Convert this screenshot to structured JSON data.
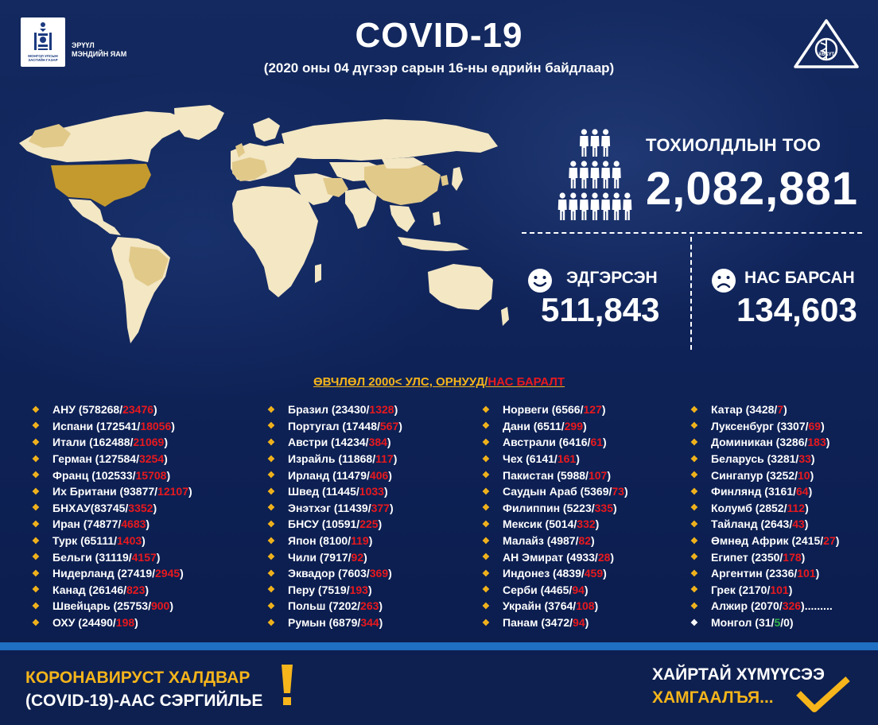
{
  "header": {
    "logo_small_text": "МОНГОЛ УЛСЫН ЗАСГИЙН ГАЗАР",
    "ministry_line1": "ЭРҮҮЛ",
    "ministry_line2": "МЭНДИЙН ЯАМ",
    "title": "COVID-19",
    "subtitle": "(2020 оны 04 дүгээр сарын 16-ны өдрийн байдлаар)",
    "emblem_text": "ХӨСҮТ"
  },
  "stats": {
    "cases_label": "ТОХИОЛДЛЫН ТОО",
    "cases_value": "2,082,881",
    "recovered_label": "ЭДГЭРСЭН",
    "recovered_value": "511,843",
    "deaths_label": "НАС БАРСАН",
    "deaths_value": "134,603"
  },
  "list": {
    "header_prefix": "ӨВЧЛӨЛ 2000< УЛС, ОРНУУД/",
    "header_suffix": "НАС БАРАЛТ",
    "columns": [
      [
        {
          "name": "АНУ",
          "cases": "578268",
          "deaths": "23476"
        },
        {
          "name": "Испани",
          "cases": "172541",
          "deaths": "18056"
        },
        {
          "name": "Итали",
          "cases": "162488",
          "deaths": "21069"
        },
        {
          "name": "Герман",
          "cases": "127584",
          "deaths": "3254"
        },
        {
          "name": "Франц",
          "cases": "102533",
          "deaths": "15708"
        },
        {
          "name": "Их Британи",
          "cases": "93877",
          "deaths": "12107"
        },
        {
          "name": "БНХАУ",
          "cases": "83745",
          "deaths": "3352",
          "nospace": true
        },
        {
          "name": "Иран",
          "cases": "74877",
          "deaths": "4683"
        },
        {
          "name": "Турк",
          "cases": "65111",
          "deaths": "1403"
        },
        {
          "name": "Бельги",
          "cases": "31119",
          "deaths": "4157"
        },
        {
          "name": "Нидерланд",
          "cases": "27419",
          "deaths": "2945"
        },
        {
          "name": "Канад",
          "cases": "26146",
          "deaths": "823"
        },
        {
          "name": "Швейцарь",
          "cases": "25753",
          "deaths": "900"
        },
        {
          "name": "ОХУ",
          "cases": "24490",
          "deaths": "198"
        }
      ],
      [
        {
          "name": "Бразил",
          "cases": "23430",
          "deaths": "1328"
        },
        {
          "name": "Португал",
          "cases": "17448",
          "deaths": "567"
        },
        {
          "name": "Австри",
          "cases": "14234",
          "deaths": "384"
        },
        {
          "name": "Израйль",
          "cases": "11868",
          "deaths": "117"
        },
        {
          "name": "Ирланд",
          "cases": "11479",
          "deaths": "406"
        },
        {
          "name": "Швед",
          "cases": "11445",
          "deaths": "1033"
        },
        {
          "name": "Энэтхэг",
          "cases": "11439",
          "deaths": "377"
        },
        {
          "name": "БНСУ",
          "cases": "10591",
          "deaths": "225"
        },
        {
          "name": "Япон",
          "cases": "8100",
          "deaths": "119"
        },
        {
          "name": "Чили",
          "cases": "7917",
          "deaths": "92"
        },
        {
          "name": "Эквадор",
          "cases": "7603",
          "deaths": "369"
        },
        {
          "name": "Перу",
          "cases": "7519",
          "deaths": "193"
        },
        {
          "name": "Польш",
          "cases": "7202",
          "deaths": "263"
        },
        {
          "name": "Румын",
          "cases": "6879",
          "deaths": "344"
        }
      ],
      [
        {
          "name": "Норвеги",
          "cases": "6566",
          "deaths": "127"
        },
        {
          "name": "Дани",
          "cases": "6511",
          "deaths": "299"
        },
        {
          "name": "Австрали",
          "cases": "6416",
          "deaths": "61"
        },
        {
          "name": "Чех",
          "cases": "6141",
          "deaths": "161"
        },
        {
          "name": "Пакистан",
          "cases": "5988",
          "deaths": "107"
        },
        {
          "name": "Саудын Араб",
          "cases": "5369",
          "deaths": "73"
        },
        {
          "name": "Филиппин",
          "cases": "5223",
          "deaths": "335"
        },
        {
          "name": "Мексик",
          "cases": "5014",
          "deaths": "332"
        },
        {
          "name": "Малайз",
          "cases": "4987",
          "deaths": "82"
        },
        {
          "name": "АН Эмират",
          "cases": "4933",
          "deaths": "28"
        },
        {
          "name": "Индонез",
          "cases": "4839",
          "deaths": "459"
        },
        {
          "name": "Серби",
          "cases": "4465",
          "deaths": "94"
        },
        {
          "name": "Украйн",
          "cases": "3764",
          "deaths": "108"
        },
        {
          "name": "Панам",
          "cases": "3472",
          "deaths": "94"
        }
      ],
      [
        {
          "name": "Катар",
          "cases": "3428",
          "deaths": "7"
        },
        {
          "name": "Луксенбург",
          "cases": "3307",
          "deaths": "69"
        },
        {
          "name": "Доминикан",
          "cases": "3286",
          "deaths": "183"
        },
        {
          "name": "Беларусь",
          "cases": "3281",
          "deaths": "33"
        },
        {
          "name": "Сингапур",
          "cases": "3252",
          "deaths": "10"
        },
        {
          "name": "Финлянд",
          "cases": "3161",
          "deaths": "64"
        },
        {
          "name": "Колумб",
          "cases": "2852",
          "deaths": "112"
        },
        {
          "name": "Тайланд",
          "cases": "2643",
          "deaths": "43"
        },
        {
          "name": "Өмнөд Африк",
          "cases": "2415",
          "deaths": "27"
        },
        {
          "name": "Египет",
          "cases": "2350",
          "deaths": "178"
        },
        {
          "name": "Аргентин",
          "cases": "2336",
          "deaths": "101"
        },
        {
          "name": "Грек",
          "cases": "2170",
          "deaths": "101"
        },
        {
          "name": "Алжир",
          "cases": "2070",
          "deaths": "326",
          "trail": "........."
        }
      ]
    ],
    "mongolia": {
      "name": "Монгол",
      "cases": "31",
      "recovered": "5",
      "deaths": "0"
    }
  },
  "footer": {
    "left_line1": "КОРОНАВИРУСТ ХАЛДВАР",
    "left_line2": "(COVID-19)-ААС СЭРГИЙЛЬЕ",
    "right_line1": "ХАЙРТАЙ ХҮМҮҮСЭЭ",
    "right_line2": "ХАМГААЛЪЯ..."
  },
  "colors": {
    "background": "#0d1f52",
    "accent_yellow": "#f5b51b",
    "death_red": "#e8191e",
    "recovered_green": "#2fb44a",
    "map_land": "#f3e7c4",
    "map_high": "#c49a2e",
    "map_mid": "#e1c98a",
    "stripe_blue": "#1f6fc2"
  },
  "icons": [
    "mongolia-soyombo-icon",
    "ministry-emblem-icon",
    "people-crowd-icon",
    "smile-face-icon",
    "sad-face-icon",
    "exclamation-icon",
    "checkmark-icon"
  ]
}
